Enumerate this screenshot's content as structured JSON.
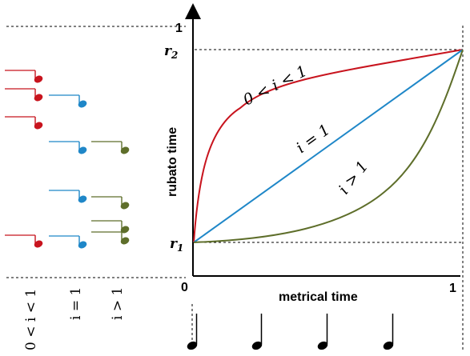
{
  "axes": {
    "y_label": "rubato time",
    "x_label": "metrical time",
    "y_one": "1",
    "x_origin": "0",
    "x_one": "1",
    "r1_base": "r",
    "r1_sub": "1",
    "r2_base": "r",
    "r2_sub": "2"
  },
  "curves": [
    {
      "name": "0 < i < 1",
      "color": "#c8141e"
    },
    {
      "name": "i = 1",
      "color": "#1f87c8"
    },
    {
      "name": "i > 1",
      "color": "#5e6e2a"
    }
  ],
  "labels": {
    "curve_low": "0 < i < 1",
    "curve_mid": "i = 1",
    "curve_high": "i > 1",
    "column_low": "0 < i < 1",
    "column_mid": "i = 1",
    "column_high": "i > 1"
  },
  "colors": {
    "red": "#c8141e",
    "blue": "#1f87c8",
    "green": "#5e6e2a",
    "black": "#000000"
  },
  "bottom_notes": {
    "count": 4
  },
  "left_notes": {
    "red_count": 4,
    "blue_count": 5,
    "green_count": 5
  }
}
